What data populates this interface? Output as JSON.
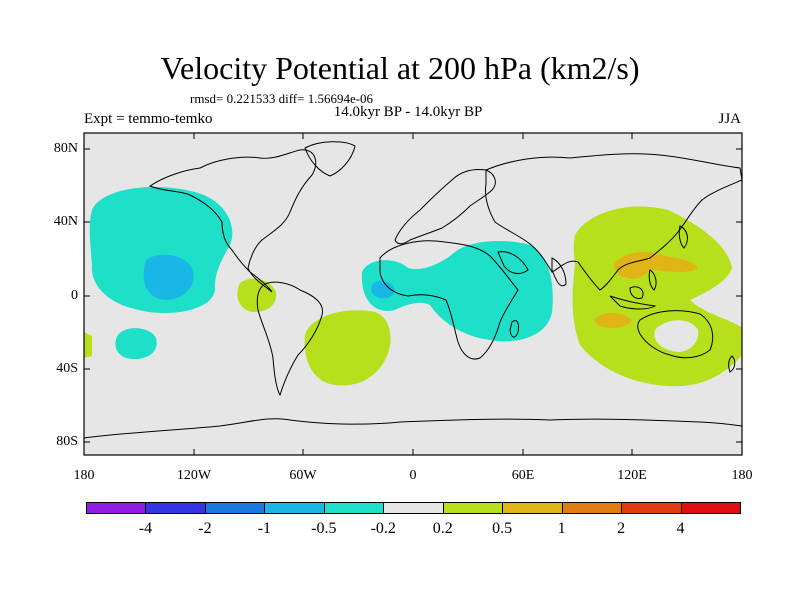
{
  "title": "Velocity Potential at 200 hPa (km2/s)",
  "stats_line": "rmsd= 0.221533 diff= 1.56694e-06",
  "experiments_line": "14.0kyr BP - 14.0kyr BP",
  "expt_label": "Expt = temmo-temko",
  "season_label": "JJA",
  "map": {
    "lat_labels": [
      "80N",
      "40N",
      "0",
      "40S",
      "80S"
    ],
    "lon_labels": [
      "180",
      "120W",
      "60W",
      "0",
      "60E",
      "120E",
      "180"
    ],
    "background_color": "#e6e6e6"
  },
  "colorbar": {
    "colors": [
      "#8f1ce3",
      "#3436e3",
      "#1a78e0",
      "#19b7e6",
      "#1ee0c8",
      "#e6e6e6",
      "#b6e01c",
      "#e0b416",
      "#e07c12",
      "#e03c10",
      "#e01010"
    ],
    "labels": [
      "-4",
      "-2",
      "-1",
      "-0.5",
      "-0.2",
      "0.2",
      "0.5",
      "1",
      "2",
      "4"
    ]
  }
}
